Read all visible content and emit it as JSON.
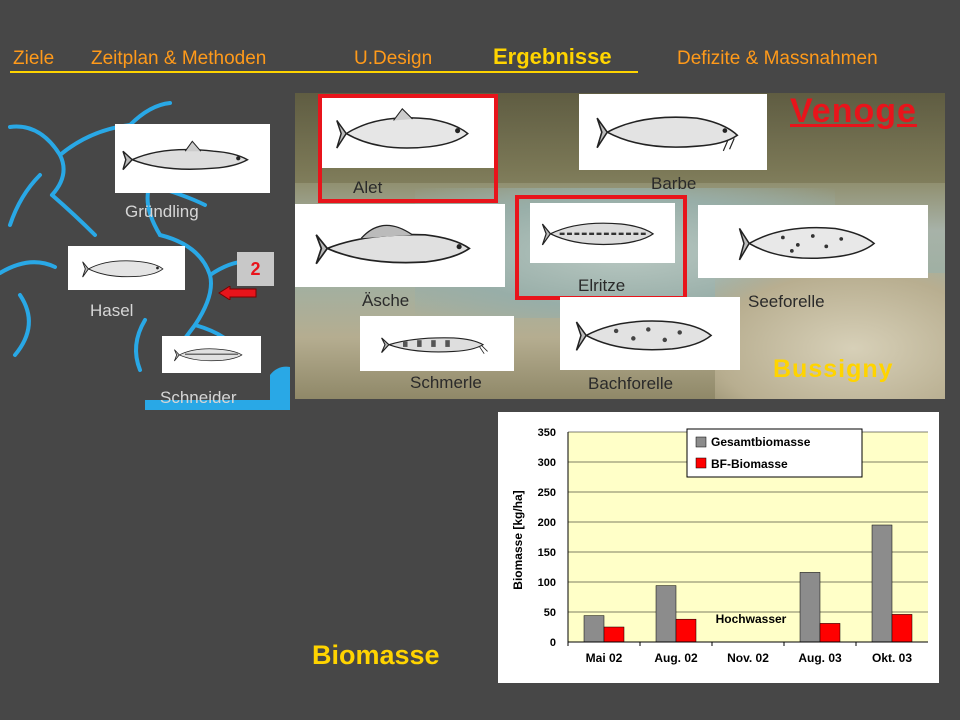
{
  "nav": {
    "items": [
      {
        "label": "Ziele",
        "active": false
      },
      {
        "label": "Zeitplan & Methoden",
        "active": false
      },
      {
        "label": "U.Design",
        "active": false
      },
      {
        "label": "Ergebnisse",
        "active": true
      },
      {
        "label": "Defizite & Massnahmen",
        "active": false
      }
    ]
  },
  "site": {
    "river": "Venoge",
    "location": "Bussigny",
    "badge": "2"
  },
  "left_fish": [
    {
      "name": "Gründling",
      "icon": "gruendling-fish-icon"
    },
    {
      "name": "Hasel",
      "icon": "hasel-fish-icon"
    },
    {
      "name": "Schneider",
      "icon": "schneider-fish-icon"
    }
  ],
  "photo_fish": [
    {
      "name": "Alet",
      "highlighted": true
    },
    {
      "name": "Barbe",
      "highlighted": false
    },
    {
      "name": "Äsche",
      "highlighted": false
    },
    {
      "name": "Elritze",
      "highlighted": true
    },
    {
      "name": "Seeforelle",
      "highlighted": false
    },
    {
      "name": "Schmerle",
      "highlighted": false
    },
    {
      "name": "Bachforelle",
      "highlighted": false
    }
  ],
  "section_title": "Biomasse",
  "colors": {
    "accent_yellow": "#ffd400",
    "nav_orange": "#ff9a1a",
    "highlight_red": "#e8141b",
    "river_blue": "#29a8e6",
    "plot_bg": "#ffffc8",
    "bar_gray": "#8c8c8c",
    "bar_red": "#ff0000"
  },
  "chart_data": {
    "type": "bar",
    "categories": [
      "Mai 02",
      "Aug. 02",
      "Nov. 02",
      "Aug. 03",
      "Okt. 03"
    ],
    "series": [
      {
        "name": "Gesamtbiomasse",
        "color": "#8c8c8c",
        "values": [
          44,
          94,
          null,
          116,
          195
        ]
      },
      {
        "name": "BF-Biomasse",
        "color": "#ff0000",
        "values": [
          25,
          38,
          null,
          31,
          46
        ]
      }
    ],
    "annotation": "Hochwasser",
    "ylabel": "Biomasse [kg/ha]",
    "xlabel": "",
    "ylim": [
      0,
      350
    ],
    "yticks": [
      0,
      50,
      100,
      150,
      200,
      250,
      300,
      350
    ],
    "grid": true,
    "legend_position": "top-right"
  }
}
